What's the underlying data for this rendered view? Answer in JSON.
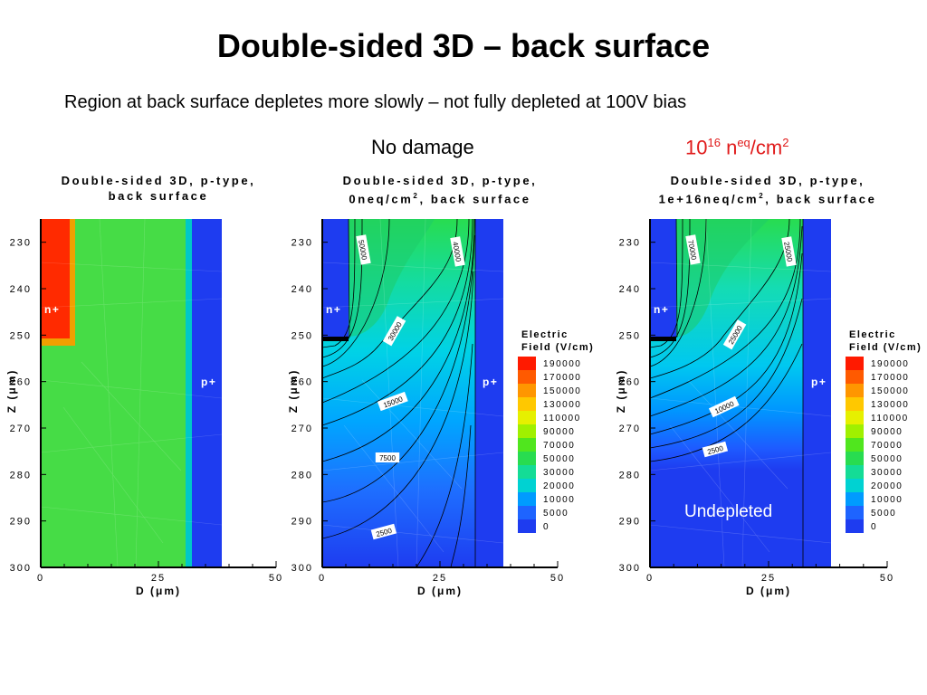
{
  "slide": {
    "title": "Double-sided 3D – back surface",
    "subtitle": "Region at back surface depletes more slowly – not fully depleted at 100V bias"
  },
  "column_labels": {
    "no_damage": "No damage",
    "damage_base": "10",
    "damage_exp": "16",
    "damage_unit": " n",
    "damage_unit_sup": "eq",
    "damage_tail": "/cm",
    "damage_tail_sup": "2"
  },
  "colors": {
    "accent_red": "#e01a1a",
    "annotation_white": "#ffffff"
  },
  "chart_data": [
    {
      "type": "heatmap",
      "title_line1": "Double-sided 3D, p-type,",
      "title_line2": "back surface",
      "xlabel": "D (μm)",
      "ylabel": "Z (μm)",
      "xlim": [
        0,
        50
      ],
      "ylim": [
        300,
        225
      ],
      "x_ticks": [
        "0",
        "25",
        "50"
      ],
      "y_ticks": [
        "230",
        "240",
        "250",
        "260",
        "270",
        "280",
        "290",
        "300"
      ],
      "annotations": [
        "n+",
        "p+"
      ],
      "contour_labels": [],
      "map": "doping"
    },
    {
      "type": "heatmap",
      "title_line1": "Double-sided 3D, p-type,",
      "title_line2a": "0neq/cm",
      "title_line2_sup": "2",
      "title_line2b": ", back surface",
      "xlabel": "D (μm)",
      "ylabel": "Z (μm)",
      "xlim": [
        0,
        50
      ],
      "ylim": [
        300,
        225
      ],
      "x_ticks": [
        "0",
        "25",
        "50"
      ],
      "y_ticks": [
        "230",
        "240",
        "250",
        "260",
        "270",
        "280",
        "290",
        "300"
      ],
      "annotations": [
        "n+",
        "p+"
      ],
      "contour_labels": [
        "50000",
        "40000",
        "30000",
        "15000",
        "7500",
        "2500"
      ],
      "map": "field_no_damage"
    },
    {
      "type": "heatmap",
      "title_line1": "Double-sided 3D, p-type,",
      "title_line2a": "1e+16neq/cm",
      "title_line2_sup": "2",
      "title_line2b": ", back surface",
      "xlabel": "D (μm)",
      "ylabel": "Z (μm)",
      "xlim": [
        0,
        50
      ],
      "ylim": [
        300,
        225
      ],
      "x_ticks": [
        "0",
        "25",
        "50"
      ],
      "y_ticks": [
        "230",
        "240",
        "250",
        "260",
        "270",
        "280",
        "290",
        "300"
      ],
      "annotations": [
        "n+",
        "p+"
      ],
      "contour_labels": [
        "70000",
        "25000",
        "25000",
        "10000",
        "2500"
      ],
      "region_label": "Undepleted",
      "map": "field_damaged"
    }
  ],
  "legend": {
    "title_line1": "Electric",
    "title_line2": "Field (V/cm)",
    "levels": [
      "190000",
      "170000",
      "150000",
      "130000",
      "110000",
      "90000",
      "70000",
      "50000",
      "30000",
      "20000",
      "10000",
      "5000",
      "0"
    ],
    "colors": [
      "#ff1a00",
      "#ff5a00",
      "#ff9600",
      "#ffc800",
      "#e6f000",
      "#a0f000",
      "#50e61e",
      "#28dc50",
      "#14dc96",
      "#00d2d2",
      "#009bff",
      "#1e64ff",
      "#1e3cf0"
    ]
  }
}
